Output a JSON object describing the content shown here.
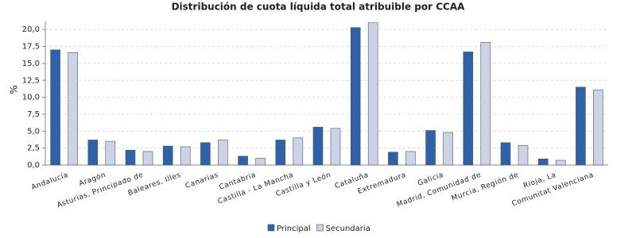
{
  "chart_data": {
    "type": "bar",
    "title": "Distribución de cuota líquida total atribuible por CCAA",
    "y_label": "%",
    "categories": [
      "Andalucía",
      "Aragón",
      "Asturias, Principado de",
      "Baleares, Illes",
      "Canarias",
      "Cantabria",
      "Castilla - La Mancha",
      "Castilla y León",
      "Cataluña",
      "Extremadura",
      "Galicia",
      "Madrid, Comunidad de",
      "Murcia, Región de",
      "Rioja, La",
      "Comunitat Valenciana"
    ],
    "series": [
      {
        "name": "Principal",
        "color": "#2f62a8",
        "values": [
          17.0,
          3.7,
          2.2,
          2.8,
          3.3,
          1.3,
          3.7,
          5.6,
          20.3,
          1.9,
          5.1,
          16.7,
          3.3,
          0.9,
          11.5
        ]
      },
      {
        "name": "Secundaria",
        "color": "#ced2e6",
        "values": [
          16.6,
          3.5,
          2.0,
          2.7,
          3.7,
          1.0,
          4.0,
          5.4,
          21.0,
          2.0,
          4.8,
          18.1,
          2.9,
          0.7,
          11.1
        ]
      }
    ],
    "ylim": [
      0,
      21.2
    ],
    "yticks": [
      {
        "value": 0,
        "label": "0,0"
      },
      {
        "value": 2.5,
        "label": "2,5"
      },
      {
        "value": 5,
        "label": "5,0"
      },
      {
        "value": 7.5,
        "label": "7,5"
      },
      {
        "value": 10,
        "label": "10,0"
      },
      {
        "value": 12.5,
        "label": "12,5"
      },
      {
        "value": 15,
        "label": "15,0"
      },
      {
        "value": 17.5,
        "label": "17,5"
      },
      {
        "value": 20,
        "label": "20,0"
      }
    ],
    "grid": true
  }
}
